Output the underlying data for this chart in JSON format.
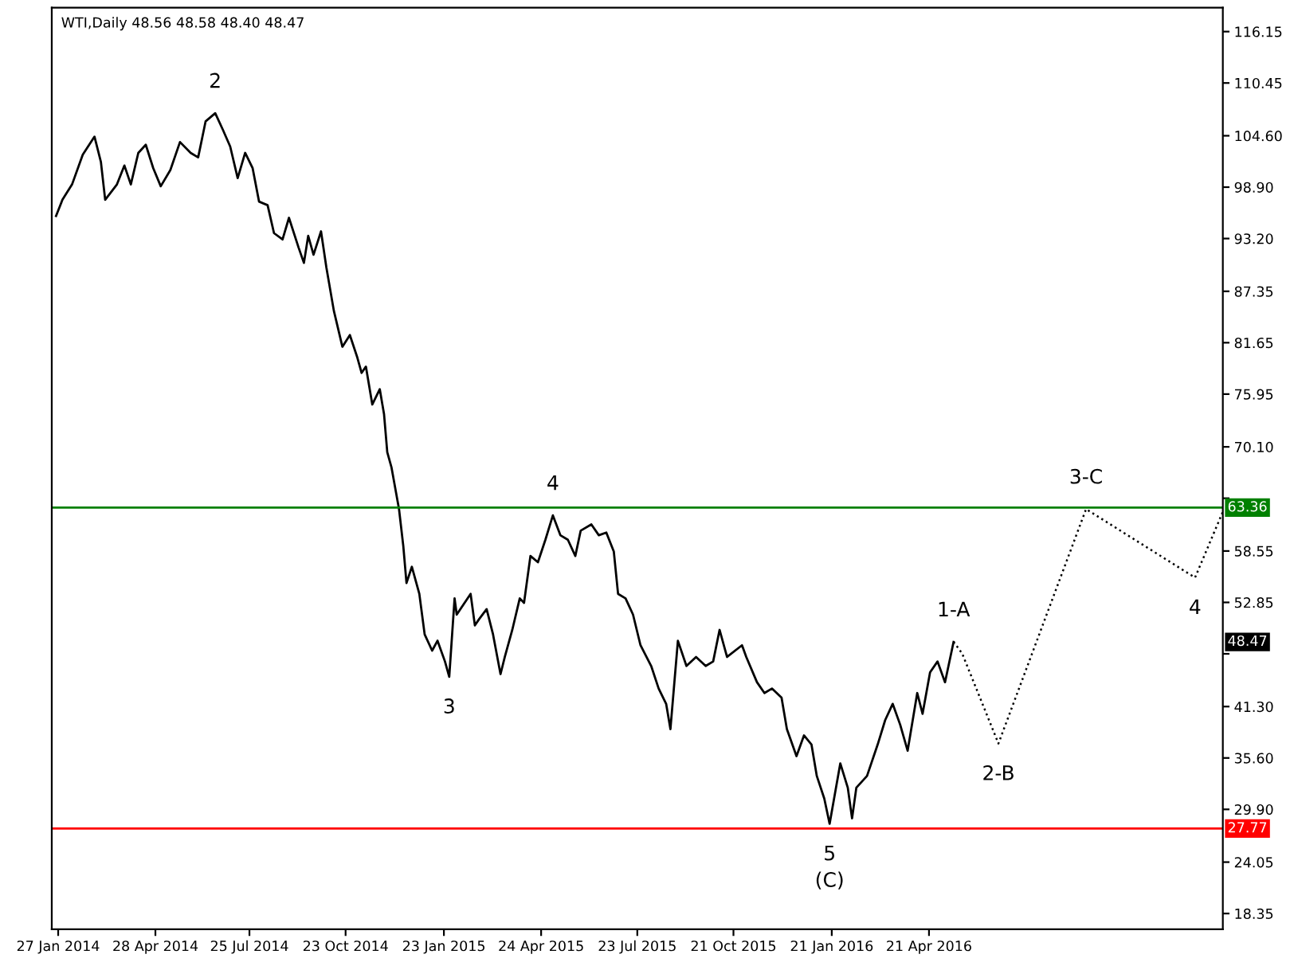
{
  "chart_data": {
    "type": "line",
    "title": "WTI,Daily 48.56 48.58 48.40 48.47",
    "series": [
      {
        "color": "#000000",
        "line_style": "solid",
        "x": [
          "2014-01-25",
          "2014-01-31",
          "2014-02-09",
          "2014-02-19",
          "2014-03-02",
          "2014-03-08",
          "2014-03-12",
          "2014-03-23",
          "2014-03-30",
          "2014-04-05",
          "2014-04-12",
          "2014-04-19",
          "2014-04-26",
          "2014-05-03",
          "2014-05-12",
          "2014-05-21",
          "2014-05-31",
          "2014-06-07",
          "2014-06-14",
          "2014-06-23",
          "2014-06-30",
          "2014-07-07",
          "2014-07-14",
          "2014-07-21",
          "2014-07-28",
          "2014-08-03",
          "2014-08-11",
          "2014-08-17",
          "2014-08-25",
          "2014-08-31",
          "2014-09-09",
          "2014-09-14",
          "2014-09-18",
          "2014-09-23",
          "2014-09-30",
          "2014-10-05",
          "2014-10-12",
          "2014-10-20",
          "2014-10-27",
          "2014-11-03",
          "2014-11-07",
          "2014-11-11",
          "2014-11-17",
          "2014-11-24",
          "2014-11-28",
          "2014-12-01",
          "2014-12-05",
          "2014-12-12",
          "2014-12-16",
          "2014-12-19",
          "2014-12-24",
          "2014-12-31",
          "2015-01-05",
          "2015-01-12",
          "2015-01-17",
          "2015-01-24",
          "2015-01-28",
          "2015-02-02",
          "2015-02-04",
          "2015-02-17",
          "2015-02-21",
          "2015-02-25",
          "2015-03-04",
          "2015-03-10",
          "2015-03-17",
          "2015-03-21",
          "2015-03-28",
          "2015-04-04",
          "2015-04-08",
          "2015-04-14",
          "2015-04-21",
          "2015-04-28",
          "2015-05-05",
          "2015-05-12",
          "2015-05-19",
          "2015-05-26",
          "2015-05-31",
          "2015-06-10",
          "2015-06-17",
          "2015-06-24",
          "2015-07-01",
          "2015-07-05",
          "2015-07-12",
          "2015-07-19",
          "2015-07-26",
          "2015-08-05",
          "2015-08-12",
          "2015-08-19",
          "2015-08-23",
          "2015-08-30",
          "2015-09-07",
          "2015-09-16",
          "2015-09-25",
          "2015-10-02",
          "2015-10-08",
          "2015-10-15",
          "2015-10-29",
          "2015-11-02",
          "2015-11-12",
          "2015-11-19",
          "2015-11-26",
          "2015-12-05",
          "2015-12-10",
          "2015-12-19",
          "2015-12-26",
          "2016-01-02",
          "2016-01-07",
          "2016-01-14",
          "2016-01-19",
          "2016-01-29",
          "2016-02-05",
          "2016-02-09",
          "2016-02-13",
          "2016-02-23",
          "2016-03-04",
          "2016-03-11",
          "2016-03-18",
          "2016-03-25",
          "2016-04-01",
          "2016-04-10",
          "2016-04-15",
          "2016-04-22",
          "2016-04-29",
          "2016-05-06",
          "2016-05-14"
        ],
        "values": [
          95.7,
          97.5,
          99.2,
          102.5,
          104.5,
          101.7,
          97.5,
          99.2,
          101.3,
          99.2,
          102.7,
          103.6,
          101.0,
          99.0,
          100.8,
          103.9,
          102.7,
          102.2,
          106.2,
          107.1,
          105.3,
          103.4,
          99.9,
          102.7,
          101.0,
          97.3,
          96.9,
          93.8,
          93.1,
          95.5,
          92.2,
          90.5,
          93.5,
          91.4,
          94.0,
          90.0,
          85.2,
          81.2,
          82.5,
          80.0,
          78.3,
          79.0,
          74.8,
          76.5,
          73.7,
          69.5,
          67.8,
          63.2,
          59.1,
          55.0,
          56.8,
          53.8,
          49.3,
          47.5,
          48.6,
          46.3,
          44.6,
          53.3,
          51.5,
          53.8,
          50.3,
          51.0,
          52.1,
          49.3,
          44.9,
          46.8,
          49.8,
          53.3,
          52.8,
          58.0,
          57.3,
          59.8,
          62.5,
          60.3,
          59.8,
          58.0,
          60.8,
          61.5,
          60.3,
          60.6,
          58.5,
          53.8,
          53.3,
          51.5,
          48.1,
          45.8,
          43.3,
          41.6,
          38.8,
          48.6,
          45.8,
          46.8,
          45.8,
          46.3,
          49.8,
          46.8,
          48.1,
          46.8,
          44.0,
          42.8,
          43.3,
          42.3,
          38.8,
          35.8,
          38.1,
          37.1,
          33.6,
          31.1,
          28.3,
          35.0,
          32.3,
          28.9,
          32.3,
          33.6,
          37.1,
          39.8,
          41.6,
          39.3,
          36.4,
          42.8,
          40.5,
          45.1,
          46.3,
          44.0,
          48.47
        ]
      },
      {
        "color": "#000000",
        "line_style": "dotted",
        "x": [
          "2016-05-14",
          "2016-05-22",
          "2016-06-25",
          "2016-09-15",
          "2016-12-26",
          "2017-01-16",
          "2017-01-21"
        ],
        "values": [
          48.47,
          47.2,
          37.2,
          63.2,
          55.6,
          61.5,
          62.9
        ]
      }
    ],
    "annotations": [
      {
        "text": "2",
        "x": "2014-06-23",
        "y": 107.1
      },
      {
        "text": "3",
        "x": "2015-01-28",
        "y": 44.6
      },
      {
        "text": "4",
        "x": "2015-05-05",
        "y": 62.5
      },
      {
        "text": "5",
        "x": "2016-01-19",
        "y": 28.3
      },
      {
        "text": "(C)",
        "x": "2016-01-19",
        "y": 28.3
      },
      {
        "text": "1-A",
        "x": "2016-05-14",
        "y": 48.47
      },
      {
        "text": "2-B",
        "x": "2016-06-25",
        "y": 37.2
      },
      {
        "text": "3-C",
        "x": "2016-09-15",
        "y": 63.2
      },
      {
        "text": "4",
        "x": "2016-12-26",
        "y": 55.6
      },
      {
        "text": "48.47",
        "y": 48.47
      }
    ],
    "ref_lines": [
      {
        "axis": "y",
        "value": 63.36,
        "label": "63.36",
        "color": "#008000"
      },
      {
        "axis": "y",
        "value": 27.77,
        "label": "27.77",
        "color": "#ff0000"
      }
    ],
    "xlim": [
      "2014-01-21",
      "2017-01-21"
    ],
    "xticks": [
      {
        "value": "2014-01-27",
        "label": "27 Jan 2014"
      },
      {
        "value": "2014-04-28",
        "label": "28 Apr 2014"
      },
      {
        "value": "2014-07-25",
        "label": "25 Jul 2014"
      },
      {
        "value": "2014-10-23",
        "label": "23 Oct 2014"
      },
      {
        "value": "2015-01-23",
        "label": "23 Jan 2015"
      },
      {
        "value": "2015-04-24",
        "label": "24 Apr 2015"
      },
      {
        "value": "2015-07-23",
        "label": "23 Jul 2015"
      },
      {
        "value": "2015-10-21",
        "label": "21 Oct 2015"
      },
      {
        "value": "2016-01-21",
        "label": "21 Jan 2016"
      },
      {
        "value": "2016-04-21",
        "label": "21 Apr 2016"
      }
    ],
    "ylim": [
      16.6,
      118.8
    ],
    "yticks": [
      {
        "value": 18.35,
        "label": "18.35"
      },
      {
        "value": 24.05,
        "label": "24.05"
      },
      {
        "value": 29.9,
        "label": "29.90"
      },
      {
        "value": 35.6,
        "label": "35.60"
      },
      {
        "value": 41.3,
        "label": "41.30"
      },
      {
        "value": 47.15,
        "label": null
      },
      {
        "value": 52.85,
        "label": "52.85"
      },
      {
        "value": 58.55,
        "label": "58.55"
      },
      {
        "value": 64.4,
        "label": null
      },
      {
        "value": 70.1,
        "label": "70.10"
      },
      {
        "value": 75.95,
        "label": "75.95"
      },
      {
        "value": 81.65,
        "label": "81.65"
      },
      {
        "value": 87.35,
        "label": "87.35"
      },
      {
        "value": 93.2,
        "label": "93.20"
      },
      {
        "value": 98.9,
        "label": "98.90"
      },
      {
        "value": 104.6,
        "label": "104.60"
      },
      {
        "value": 110.45,
        "label": "110.45"
      },
      {
        "value": 116.15,
        "label": "116.15"
      }
    ],
    "grid": false,
    "legend": false
  }
}
